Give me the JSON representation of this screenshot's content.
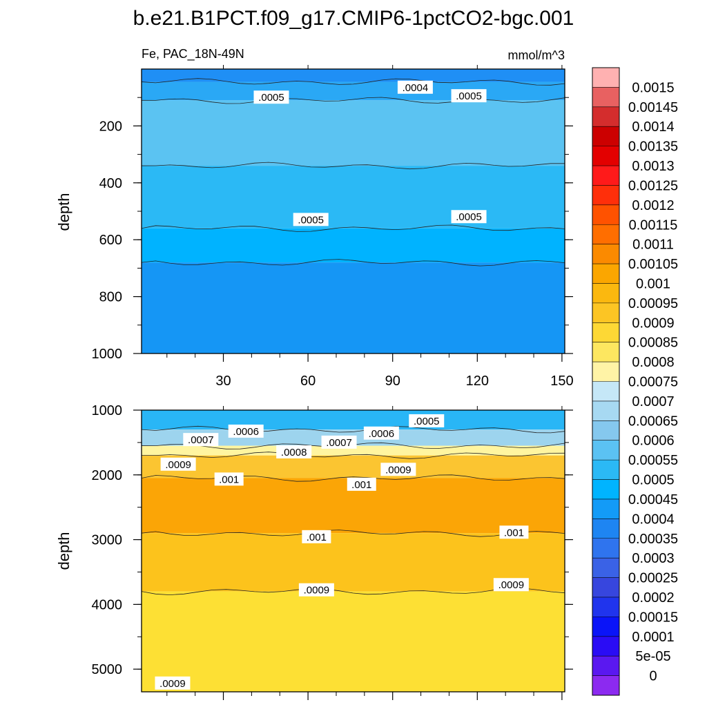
{
  "title": "b.e21.B1PCT.f09_g17.CMIP6-1pctCO2-bgc.001",
  "chart_data": [
    {
      "type": "contour",
      "panel": "upper",
      "subtitle_left": "Fe, PAC_18N-49N",
      "subtitle_right": "mmol/m^3",
      "ylabel": "depth",
      "xlabel": "",
      "xlim": [
        1,
        151
      ],
      "ylim": [
        0,
        1000
      ],
      "y_reversed": true,
      "x_ticks": [
        "30",
        "60",
        "90",
        "120",
        "150"
      ],
      "y_ticks": [
        "200",
        "400",
        "600",
        "800",
        "1000"
      ],
      "bands": [
        {
          "from": 0,
          "to": 45,
          "level": 0.0004,
          "color": "#1f8ff5"
        },
        {
          "from": 45,
          "to": 110,
          "level": 0.00045,
          "color": "#2aa8f5"
        },
        {
          "from": 110,
          "to": 340,
          "level": 0.0005,
          "color": "#5bc3f2"
        },
        {
          "from": 340,
          "to": 560,
          "level": 0.0005,
          "color": "#2bb9f5"
        },
        {
          "from": 560,
          "to": 680,
          "level": 0.00045,
          "color": "#00b3ff"
        },
        {
          "from": 680,
          "to": 1000,
          "level": 0.0004,
          "color": "#1596f5"
        }
      ],
      "contour_labels": [
        {
          "text": ".0005",
          "x": 47,
          "y": 100
        },
        {
          "text": ".0004",
          "x": 98,
          "y": 65
        },
        {
          "text": ".0005",
          "x": 117,
          "y": 95
        },
        {
          "text": ".0005",
          "x": 61,
          "y": 530
        },
        {
          "text": ".0005",
          "x": 117,
          "y": 520
        }
      ]
    },
    {
      "type": "contour",
      "panel": "lower",
      "ylabel": "depth",
      "xlabel": "",
      "xlim": [
        1,
        151
      ],
      "ylim": [
        1000,
        5350
      ],
      "y_reversed": true,
      "x_ticks": [
        "",
        "",
        "",
        "",
        ""
      ],
      "y_ticks": [
        "1000",
        "2000",
        "3000",
        "4000",
        "5000"
      ],
      "bands": [
        {
          "from": 1000,
          "to": 1300,
          "level": 0.0005,
          "color": "#29b6f6"
        },
        {
          "from": 1300,
          "to": 1550,
          "level": 0.0006,
          "color": "#9dd4ee"
        },
        {
          "from": 1550,
          "to": 1700,
          "level": 0.00075,
          "color": "#fff5a0"
        },
        {
          "from": 1700,
          "to": 2050,
          "level": 0.0009,
          "color": "#fbc531"
        },
        {
          "from": 2050,
          "to": 2900,
          "level": 0.001,
          "color": "#fba506"
        },
        {
          "from": 2900,
          "to": 3800,
          "level": 0.00095,
          "color": "#fcc31c"
        },
        {
          "from": 3800,
          "to": 5350,
          "level": 0.0009,
          "color": "#fde034"
        }
      ],
      "contour_labels": [
        {
          "text": ".0005",
          "x": 102,
          "y": 1170
        },
        {
          "text": ".0006",
          "x": 38,
          "y": 1330
        },
        {
          "text": ".0006",
          "x": 86,
          "y": 1360
        },
        {
          "text": ".0007",
          "x": 22,
          "y": 1460
        },
        {
          "text": ".0007",
          "x": 71,
          "y": 1500
        },
        {
          "text": ".0008",
          "x": 55,
          "y": 1650
        },
        {
          "text": ".0009",
          "x": 14,
          "y": 1840
        },
        {
          "text": ".0009",
          "x": 92,
          "y": 1920
        },
        {
          "text": ".001",
          "x": 32,
          "y": 2070
        },
        {
          "text": ".001",
          "x": 79,
          "y": 2150
        },
        {
          "text": ".001",
          "x": 63,
          "y": 2960
        },
        {
          "text": ".001",
          "x": 133,
          "y": 2890
        },
        {
          "text": ".0009",
          "x": 63,
          "y": 3780
        },
        {
          "text": ".0009",
          "x": 132,
          "y": 3700
        },
        {
          "text": ".0009",
          "x": 12,
          "y": 5220
        }
      ]
    }
  ],
  "colorbar": {
    "levels": [
      "0.0015",
      "0.00145",
      "0.0014",
      "0.00135",
      "0.0013",
      "0.00125",
      "0.0012",
      "0.00115",
      "0.0011",
      "0.00105",
      "0.001",
      "0.00095",
      "0.0009",
      "0.00085",
      "0.0008",
      "0.00075",
      "0.0007",
      "0.00065",
      "0.0006",
      "0.00055",
      "0.0005",
      "0.00045",
      "0.0004",
      "0.00035",
      "0.0003",
      "0.00025",
      "0.0002",
      "0.00015",
      "0.0001",
      "5e-05",
      "0"
    ],
    "colors": [
      "#ffb1b1",
      "#e86161",
      "#d42d2d",
      "#cc0000",
      "#e30000",
      "#ff1a1a",
      "#ff2f0a",
      "#ff5200",
      "#ff6e00",
      "#fb8a00",
      "#fba600",
      "#fbb80f",
      "#fcc524",
      "#fdd835",
      "#fde760",
      "#fff3a6",
      "#c5e7f7",
      "#a7d9f2",
      "#85c8ee",
      "#5bc2f3",
      "#2bb9f5",
      "#00b4ff",
      "#139bf7",
      "#1e85f2",
      "#2f74ee",
      "#3a62e6",
      "#3746de",
      "#2034ed",
      "#0a14f8",
      "#2a0cf5",
      "#5a18f0",
      "#8c2af0"
    ]
  }
}
